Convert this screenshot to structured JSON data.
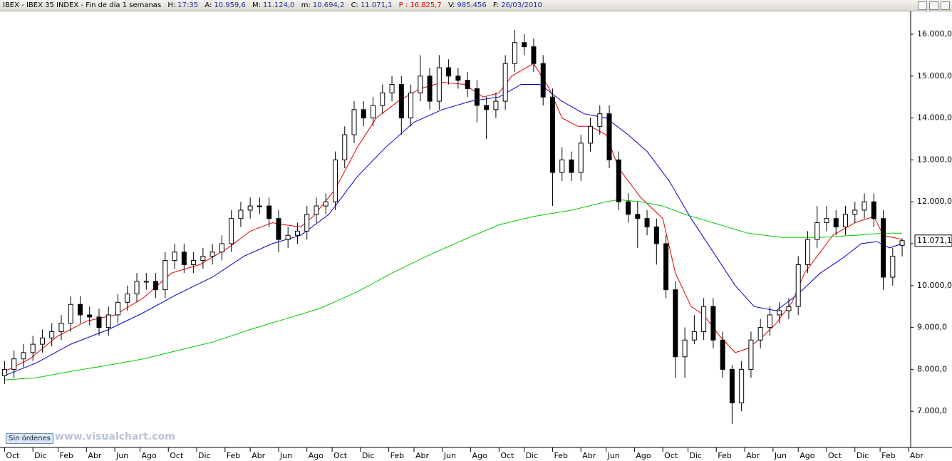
{
  "header": {
    "title": "IBEX - IBEX 35 INDEX - Fin de día 1 semanas",
    "fields": [
      {
        "label": "H:",
        "value": "17:35"
      },
      {
        "label": "A:",
        "value": "10.959,6"
      },
      {
        "label": "M:",
        "value": "11.124,0"
      },
      {
        "label": "m:",
        "value": "10.694,2"
      },
      {
        "label": "C:",
        "value": "11.071,1"
      },
      {
        "label": "P :",
        "value": "16.825,7"
      },
      {
        "label": "V:",
        "value": "985.456"
      },
      {
        "label": "F:",
        "value": "26/03/2010"
      }
    ]
  },
  "footer": {
    "button": "Sin órdenes",
    "watermark": "www.visualchart.com"
  },
  "chart_data": {
    "type": "candlestick",
    "x": [
      0,
      3,
      6,
      9,
      12,
      15,
      18,
      21,
      24,
      27,
      30,
      33,
      36,
      39,
      42,
      45,
      48,
      51,
      54,
      57,
      60,
      63,
      66,
      69,
      72,
      75,
      78,
      81,
      84,
      87,
      90,
      93,
      96,
      99,
      102,
      105,
      108,
      111,
      114,
      117,
      120,
      123,
      126,
      129,
      132,
      135,
      138,
      141,
      144,
      147,
      150,
      153,
      156,
      159,
      162,
      165,
      168,
      171,
      174,
      177,
      180,
      183,
      186,
      189,
      192,
      195,
      198,
      201,
      204,
      207,
      210,
      213,
      216,
      219,
      222,
      225,
      228,
      231,
      234,
      237,
      240,
      243,
      246,
      249,
      252,
      255,
      258,
      261,
      264,
      267,
      270,
      273,
      276,
      279,
      282,
      285
    ],
    "open": [
      7850,
      8000,
      8250,
      8400,
      8600,
      8750,
      8900,
      9100,
      9550,
      9300,
      9250,
      9000,
      9300,
      9600,
      9800,
      10100,
      10100,
      9900,
      10600,
      10800,
      10500,
      10600,
      10700,
      10800,
      11000,
      11600,
      11800,
      11900,
      11900,
      11600,
      11100,
      11200,
      11300,
      11700,
      11900,
      12000,
      13000,
      13600,
      14200,
      14000,
      14300,
      14600,
      14800,
      14000,
      14600,
      15000,
      14400,
      15200,
      15000,
      14900,
      14700,
      14300,
      14200,
      14400,
      15300,
      15800,
      15700,
      15300,
      14500,
      12700,
      13000,
      12700,
      13400,
      13800,
      14100,
      13000,
      12000,
      11700,
      11600,
      11400,
      11000,
      9900,
      8300,
      8700,
      8900,
      9500,
      8700,
      8000,
      7200,
      8000,
      8700,
      9000,
      9300,
      9400,
      9500,
      10500,
      11100,
      11500,
      11600,
      11400,
      11700,
      11800,
      12000,
      11600,
      10200,
      10959.6
    ],
    "high": [
      8200,
      8450,
      8600,
      8800,
      8950,
      9100,
      9300,
      9750,
      9750,
      9500,
      9450,
      9500,
      9800,
      10000,
      10300,
      10300,
      10300,
      10800,
      11000,
      11000,
      10800,
      10900,
      11000,
      11200,
      11800,
      12000,
      12100,
      12100,
      12100,
      11800,
      11400,
      11500,
      11900,
      12100,
      12200,
      13200,
      13800,
      14400,
      14400,
      14500,
      14800,
      15000,
      15000,
      14800,
      15500,
      15200,
      15500,
      15400,
      15200,
      15100,
      14900,
      14500,
      14600,
      15500,
      16100,
      16000,
      15900,
      15500,
      14700,
      13300,
      13200,
      13600,
      14000,
      14300,
      14300,
      13200,
      12200,
      12000,
      11800,
      11600,
      11200,
      10100,
      9000,
      9300,
      9700,
      9700,
      8900,
      8100,
      8200,
      8900,
      9200,
      9500,
      9600,
      9700,
      10700,
      11300,
      11900,
      11900,
      11800,
      11900,
      12000,
      12200,
      12200,
      11800,
      10900,
      11124
    ],
    "low": [
      7650,
      7800,
      8050,
      8200,
      8400,
      8550,
      8700,
      8900,
      9100,
      9050,
      8800,
      8800,
      9100,
      9400,
      9600,
      9900,
      9700,
      9700,
      10400,
      10300,
      10300,
      10400,
      10500,
      10600,
      10800,
      11400,
      11600,
      11700,
      11400,
      10800,
      10900,
      11000,
      11100,
      11500,
      11700,
      11800,
      12800,
      13400,
      13800,
      13800,
      14100,
      14400,
      13600,
      13800,
      14400,
      14200,
      14200,
      14800,
      14700,
      14500,
      13900,
      13500,
      14000,
      14200,
      15100,
      15500,
      15100,
      14300,
      11900,
      12500,
      12500,
      12500,
      13200,
      13600,
      12800,
      11800,
      11500,
      10900,
      11200,
      10500,
      9700,
      7800,
      7800,
      8600,
      8700,
      8500,
      7800,
      6700,
      7000,
      7800,
      8500,
      8800,
      9100,
      9200,
      9300,
      10300,
      10900,
      11300,
      11200,
      11200,
      11500,
      11600,
      11400,
      9900,
      10000,
      10694.2
    ],
    "close": [
      8000,
      8250,
      8400,
      8600,
      8750,
      8900,
      9100,
      9550,
      9300,
      9250,
      9000,
      9300,
      9600,
      9800,
      10100,
      10100,
      9900,
      10600,
      10800,
      10500,
      10600,
      10700,
      10800,
      11000,
      11600,
      11800,
      11900,
      11900,
      11600,
      11100,
      11200,
      11300,
      11700,
      11900,
      12000,
      13000,
      13600,
      14200,
      14000,
      14300,
      14600,
      14800,
      14000,
      14600,
      15000,
      14400,
      15200,
      15000,
      14900,
      14700,
      14300,
      14200,
      14400,
      15300,
      15800,
      15700,
      15300,
      14500,
      12700,
      13000,
      12700,
      13400,
      13800,
      14100,
      13000,
      12000,
      11700,
      11600,
      11400,
      11000,
      9900,
      8300,
      8700,
      8900,
      9500,
      8700,
      8000,
      7200,
      8000,
      8700,
      9000,
      9300,
      9400,
      9500,
      10500,
      11100,
      11500,
      11600,
      11400,
      11700,
      11800,
      12000,
      11600,
      10200,
      10700,
      11071.1
    ],
    "last_label": "11.071,1",
    "up_color": "#ffffff",
    "down_color": "#000000",
    "series": [
      {
        "color": "#e00000",
        "x": [
          0,
          8,
          17,
          26,
          35,
          44,
          53,
          62,
          71,
          78,
          85,
          89,
          94,
          98,
          105,
          112,
          118,
          125,
          132,
          139,
          146,
          152,
          157,
          161,
          168,
          173,
          177,
          182,
          186,
          191,
          195,
          202,
          209,
          213,
          218,
          222,
          227,
          232,
          236,
          241,
          245,
          250,
          254,
          259,
          263,
          270,
          276,
          279,
          285
        ],
        "values": [
          7950,
          8250,
          8800,
          9150,
          9300,
          9700,
          10300,
          10500,
          10900,
          11300,
          11500,
          11450,
          11400,
          11650,
          12300,
          13300,
          14000,
          14400,
          14700,
          14850,
          14800,
          14500,
          14600,
          15000,
          15300,
          14700,
          14000,
          13800,
          13800,
          13600,
          12800,
          12100,
          11600,
          10300,
          9500,
          9300,
          8800,
          8400,
          8500,
          8800,
          9100,
          9600,
          10300,
          10800,
          11200,
          11500,
          11650,
          11200,
          11100
        ]
      },
      {
        "color": "#0000d0",
        "x": [
          0,
          10,
          21,
          33,
          44,
          55,
          66,
          76,
          85,
          94,
          103,
          112,
          121,
          130,
          139,
          148,
          157,
          164,
          170,
          177,
          184,
          191,
          198,
          204,
          211,
          218,
          225,
          232,
          238,
          245,
          252,
          259,
          266,
          272,
          277,
          281,
          285
        ],
        "values": [
          7850,
          8150,
          8600,
          8950,
          9350,
          9800,
          10200,
          10700,
          11000,
          11200,
          11700,
          12600,
          13300,
          13900,
          14200,
          14400,
          14500,
          14800,
          14800,
          14400,
          14100,
          14000,
          13600,
          13200,
          12500,
          11600,
          10800,
          10000,
          9500,
          9400,
          9800,
          10300,
          10650,
          11000,
          11050,
          10900,
          11000
        ]
      },
      {
        "color": "#00cc00",
        "x": [
          0,
          10,
          21,
          33,
          44,
          55,
          66,
          78,
          89,
          100,
          112,
          123,
          134,
          146,
          157,
          168,
          180,
          191,
          195,
          202,
          209,
          216,
          225,
          236,
          247,
          259,
          270,
          279,
          285
        ],
        "values": [
          7750,
          7800,
          7950,
          8100,
          8250,
          8450,
          8650,
          8950,
          9200,
          9450,
          9850,
          10300,
          10700,
          11100,
          11450,
          11650,
          11800,
          12000,
          12050,
          12000,
          11900,
          11700,
          11500,
          11250,
          11150,
          11150,
          11200,
          11250,
          11250
        ]
      }
    ],
    "xlim": [
      -1.45,
      287.7
    ],
    "ylim": [
      6136,
      16544
    ],
    "xticks": [
      {
        "value": 0,
        "label": "Oct"
      },
      {
        "value": 9,
        "label": "Dic"
      },
      {
        "value": 17,
        "label": "Feb"
      },
      {
        "value": 26,
        "label": "Abr"
      },
      {
        "value": 35,
        "label": "Jun"
      },
      {
        "value": 43,
        "label": "Ago"
      },
      {
        "value": 52,
        "label": "Oct"
      },
      {
        "value": 61,
        "label": "Dic"
      },
      {
        "value": 70,
        "label": "Feb"
      },
      {
        "value": 78,
        "label": "Abr"
      },
      {
        "value": 87,
        "label": "Jun"
      },
      {
        "value": 96,
        "label": "Ago"
      },
      {
        "value": 104,
        "label": "Oct"
      },
      {
        "value": 113,
        "label": "Dic"
      },
      {
        "value": 122,
        "label": "Feb"
      },
      {
        "value": 130,
        "label": "Abr"
      },
      {
        "value": 139,
        "label": "Jun"
      },
      {
        "value": 148,
        "label": "Ago"
      },
      {
        "value": 157,
        "label": "Oct"
      },
      {
        "value": 165,
        "label": "Dic"
      },
      {
        "value": 174,
        "label": "Feb"
      },
      {
        "value": 183,
        "label": "Abr"
      },
      {
        "value": 191,
        "label": "Jun"
      },
      {
        "value": 200,
        "label": "Ago"
      },
      {
        "value": 209,
        "label": "Oct"
      },
      {
        "value": 217,
        "label": "Dic"
      },
      {
        "value": 226,
        "label": "Feb"
      },
      {
        "value": 235,
        "label": "Abr"
      },
      {
        "value": 244,
        "label": "Jun"
      },
      {
        "value": 252,
        "label": "Ago"
      },
      {
        "value": 261,
        "label": "Oct"
      },
      {
        "value": 270,
        "label": "Dic"
      },
      {
        "value": 278,
        "label": "Feb"
      },
      {
        "value": 287,
        "label": "Abr"
      }
    ],
    "yticks": [
      {
        "value": 7000,
        "label": "7.000,0"
      },
      {
        "value": 8000,
        "label": "8.000,0"
      },
      {
        "value": 9000,
        "label": "9.000,0"
      },
      {
        "value": 10000,
        "label": "10.000,0"
      },
      {
        "value": 11000,
        "label": "11.000,0"
      },
      {
        "value": 12000,
        "label": "12.000,0"
      },
      {
        "value": 13000,
        "label": "13.000,0"
      },
      {
        "value": 14000,
        "label": "14.000,0"
      },
      {
        "value": 15000,
        "label": "15.000,0"
      },
      {
        "value": 16000,
        "label": "16.000,0"
      }
    ],
    "grid": false
  }
}
